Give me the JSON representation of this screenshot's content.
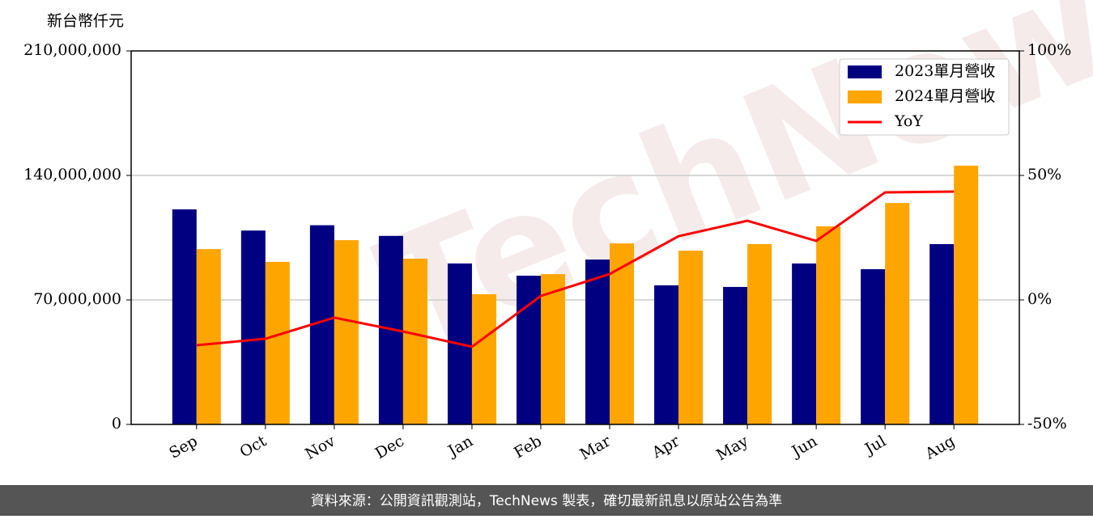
{
  "chart_data": {
    "type": "bar_line",
    "y_label": "新台幣仟元",
    "categories": [
      "Sep",
      "Oct",
      "Nov",
      "Dec",
      "Jan",
      "Feb",
      "Mar",
      "Apr",
      "May",
      "Jun",
      "Jul",
      "Aug"
    ],
    "series": [
      {
        "name": "2023單月營收",
        "color": "#000080",
        "type": "bar",
        "values": [
          120900000,
          109000000,
          112000000,
          106000000,
          90500000,
          83600000,
          92700000,
          78200000,
          77300000,
          90500000,
          87300000,
          101400000
        ]
      },
      {
        "name": "2024單月營收",
        "color": "#ffa500",
        "type": "bar",
        "values": [
          98600000,
          91400000,
          103600000,
          93200000,
          73200000,
          84500000,
          101800000,
          97700000,
          101400000,
          111400000,
          124500000,
          145500000
        ]
      },
      {
        "name": "YoY",
        "color": "#ff0000",
        "type": "line",
        "axis": "y2",
        "values": [
          -18.2,
          -15.6,
          -7.1,
          -12.7,
          -18.8,
          1.6,
          10.4,
          25.6,
          31.8,
          23.7,
          43.2,
          43.5
        ]
      }
    ],
    "ylim": [
      0,
      210000000
    ],
    "yticks": [
      0,
      {
        "value": 70000000,
        "label": "70,000,000"
      },
      {
        "value": 140000000,
        "label": "140,000,000"
      },
      {
        "value": 210000000,
        "label": "210,000,000"
      }
    ],
    "y2lim": [
      -50,
      100
    ],
    "y2ticks": [
      {
        "value": -50,
        "label": "-50%"
      },
      {
        "value": 0,
        "label": "0%"
      },
      {
        "value": 50,
        "label": "50%"
      },
      {
        "value": 100,
        "label": "100%"
      }
    ],
    "grid": true,
    "legend": "upper right",
    "watermark": "TechNews",
    "footer": "資料來源：公開資訊觀測站，TechNews 製表，確切最新訊息以原站公告為準"
  }
}
